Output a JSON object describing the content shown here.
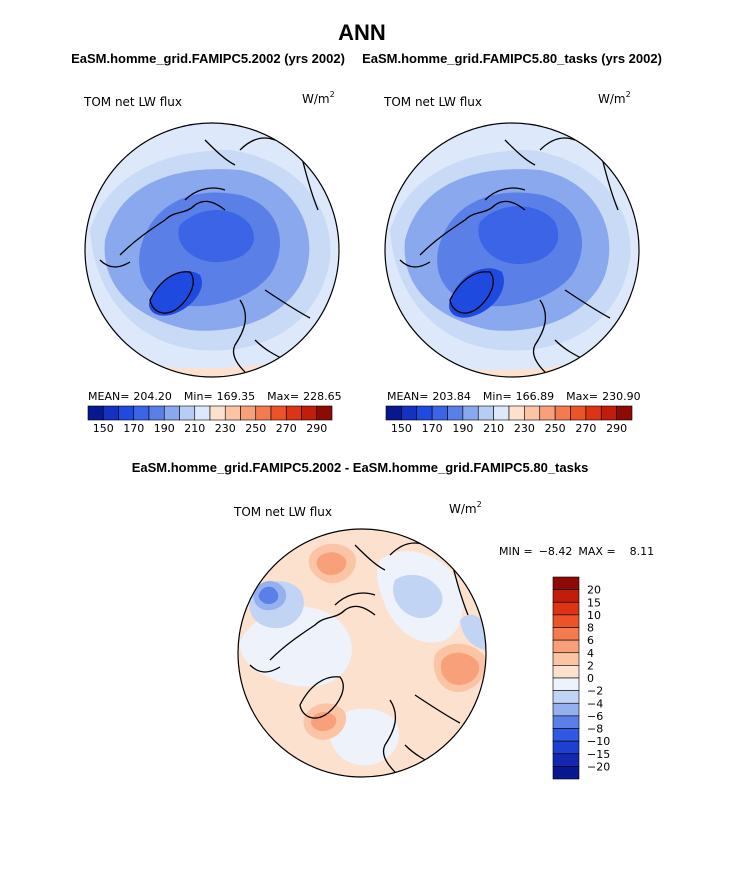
{
  "figure": {
    "title": "ANN",
    "left_title": "EaSM.homme_grid.FAMIPC5.2002 (yrs 2002)",
    "right_title": "EaSM.homme_grid.FAMIPC5.80_tasks (yrs 2002)",
    "diff_title": "EaSM.homme_grid.FAMIPC5.2002 - EaSM.homme_grid.FAMIPC5.80_tasks"
  },
  "chart_data": [
    {
      "type": "heatmap",
      "projection": "north-polar-stereographic",
      "panel": "left",
      "title": "EaSM.homme_grid.FAMIPC5.2002 (yrs 2002)",
      "field_label": "TOM net LW flux",
      "units_base": "W/m",
      "units_exp": "2",
      "stats": {
        "mean_label": "MEAN=",
        "mean": "204.20",
        "min_label": "Min=",
        "min": "169.35",
        "max_label": "Max=",
        "max": "228.65"
      },
      "colorbar": {
        "orientation": "horizontal",
        "tick_labels": [
          "150",
          "170",
          "190",
          "210",
          "230",
          "250",
          "270",
          "290"
        ],
        "colors": [
          "#08168f",
          "#1531bf",
          "#1f4ae0",
          "#3b64e6",
          "#5a80e8",
          "#8aa8ee",
          "#b8cdf4",
          "#dde8fa",
          "#fde1cf",
          "#fbc4a5",
          "#f8a07a",
          "#f47b50",
          "#ec5428",
          "#dc3414",
          "#c01d0a",
          "#8e0b05"
        ]
      },
      "regions": [
        {
          "level": "205",
          "color": "#dde8fa"
        },
        {
          "level": "200",
          "color": "#b8cdf4"
        },
        {
          "level": "195",
          "color": "#8aa8ee"
        },
        {
          "level": "185",
          "color": "#5a80e8"
        },
        {
          "level": "180",
          "color": "#3b64e6"
        },
        {
          "level": "170",
          "color": "#1f4ae0"
        },
        {
          "level": "215",
          "color": "#fde1cf"
        }
      ]
    },
    {
      "type": "heatmap",
      "projection": "north-polar-stereographic",
      "panel": "right",
      "title": "EaSM.homme_grid.FAMIPC5.80_tasks (yrs 2002)",
      "field_label": "TOM net LW flux",
      "units_base": "W/m",
      "units_exp": "2",
      "stats": {
        "mean_label": "MEAN=",
        "mean": "203.84",
        "min_label": "Min=",
        "min": "166.89",
        "max_label": "Max=",
        "max": "230.90"
      },
      "colorbar": {
        "orientation": "horizontal",
        "tick_labels": [
          "150",
          "170",
          "190",
          "210",
          "230",
          "250",
          "270",
          "290"
        ],
        "colors": [
          "#08168f",
          "#1531bf",
          "#1f4ae0",
          "#3b64e6",
          "#5a80e8",
          "#8aa8ee",
          "#b8cdf4",
          "#dde8fa",
          "#fde1cf",
          "#fbc4a5",
          "#f8a07a",
          "#f47b50",
          "#ec5428",
          "#dc3414",
          "#c01d0a",
          "#8e0b05"
        ]
      }
    },
    {
      "type": "heatmap",
      "projection": "north-polar-stereographic",
      "panel": "difference",
      "title": "EaSM.homme_grid.FAMIPC5.2002 - EaSM.homme_grid.FAMIPC5.80_tasks",
      "field_label": "TOM net LW flux",
      "units_base": "W/m",
      "units_exp": "2",
      "stats": {
        "min_label": "MIN =",
        "min": "−8.42",
        "max_label": "MAX =",
        "max": "8.11"
      },
      "colorbar": {
        "orientation": "vertical",
        "tick_labels": [
          "20",
          "15",
          "10",
          "8",
          "6",
          "4",
          "2",
          "0",
          "−2",
          "−4",
          "−6",
          "−8",
          "−10",
          "−15",
          "−20"
        ],
        "colors": [
          "#8e0b05",
          "#c01d0a",
          "#dc3414",
          "#ec5428",
          "#f47b50",
          "#f8a07a",
          "#fbc4a5",
          "#fde1cf",
          "#eef3fb",
          "#c2d4f4",
          "#94b0ee",
          "#5a80e8",
          "#2f58e3",
          "#1f3fd0",
          "#1228b0",
          "#08168f"
        ]
      }
    }
  ]
}
